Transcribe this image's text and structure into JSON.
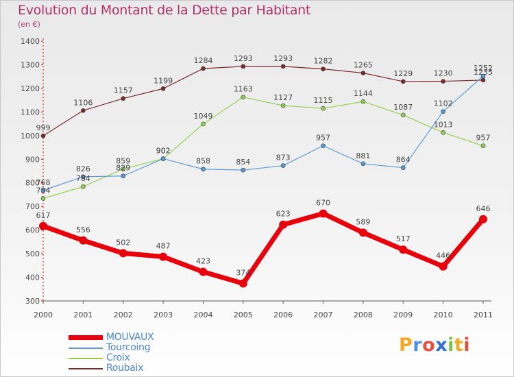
{
  "chart_data": {
    "type": "line",
    "title": "Evolution du Montant de la Dette par Habitant",
    "subtitle": "(en €)",
    "x": [
      2000,
      2001,
      2002,
      2003,
      2004,
      2005,
      2006,
      2007,
      2008,
      2009,
      2010,
      2011
    ],
    "y_ticks": [
      300,
      400,
      500,
      600,
      700,
      800,
      900,
      1000,
      1100,
      1200,
      1300,
      1400
    ],
    "ylim": [
      300,
      1400
    ],
    "grid": false,
    "legend_position": "bottom-left",
    "series": [
      {
        "name": "MOUVAUX",
        "color": "#e8000b",
        "values": [
          617,
          556,
          502,
          487,
          423,
          374,
          623,
          670,
          589,
          517,
          446,
          646
        ]
      },
      {
        "name": "Tourcoing",
        "color": "#5b9bd5",
        "values": [
          768,
          826,
          829,
          902,
          858,
          854,
          873,
          957,
          881,
          864,
          1102,
          1252
        ]
      },
      {
        "name": "Croix",
        "color": "#92d050",
        "values": [
          734,
          784,
          859,
          902,
          1049,
          1163,
          1127,
          1115,
          1144,
          1087,
          1013,
          957
        ]
      },
      {
        "name": "Roubaix",
        "color": "#7b2a2a",
        "values": [
          999,
          1106,
          1157,
          1199,
          1284,
          1293,
          1293,
          1282,
          1265,
          1229,
          1230,
          1235
        ]
      }
    ]
  },
  "logo": {
    "letters": [
      "P",
      "r",
      "o",
      "x",
      "i",
      "t",
      "i"
    ],
    "colors": [
      "#f5a623",
      "#4a90e2",
      "#e94e3c",
      "#2f6fd6",
      "#7cc142",
      "#f5a623",
      "#e94e3c"
    ]
  }
}
